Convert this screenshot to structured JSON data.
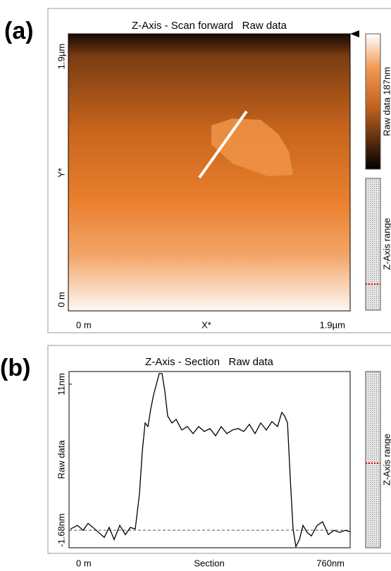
{
  "panel_a": {
    "label": "(a)",
    "title": "Z-Axis - Scan forward   Raw data",
    "y_labels": [
      "1.9µm",
      "Y*",
      "0 m"
    ],
    "x_labels": [
      "0 m",
      "X*",
      "1.9µm"
    ],
    "colorbar_label": "Raw data 187nm",
    "range_label": "Z-Axis range"
  },
  "panel_b": {
    "label": "(b)",
    "range_label": "Z-Axis range",
    "chart_data": {
      "type": "line",
      "title": "Z-Axis - Section   Raw data",
      "x_label": "Section",
      "y_label": "Raw data",
      "x": [
        3.8,
        22.9,
        38.1,
        51.4,
        64.8,
        80.0,
        95.3,
        108.6,
        121.9,
        137.2,
        152.4,
        165.7,
        179.1,
        190.5,
        198.1,
        205.7,
        213.4,
        221.0,
        228.6,
        236.2,
        243.8,
        251.5,
        259.1,
        266.7,
        278.1,
        289.6,
        304.8,
        320.0,
        335.3,
        350.5,
        365.8,
        381.0,
        396.2,
        411.5,
        426.7,
        442.0,
        457.2,
        472.4,
        487.7,
        502.9,
        518.2,
        533.4,
        548.6,
        563.9,
        575.3,
        582.9,
        590.6,
        598.2,
        605.8,
        613.4,
        622.9,
        632.5,
        643.9,
        655.3,
        670.6,
        685.8,
        701.0,
        716.3,
        731.5,
        746.7,
        760
      ],
      "series": [
        {
          "color": "#000000",
          "values": [
            -1.57,
            -1.26,
            -1.69,
            -1.08,
            -1.44,
            -1.87,
            -2.3,
            -1.44,
            -2.49,
            -1.26,
            -2.06,
            -1.44,
            -1.57,
            1.5,
            5.18,
            7.63,
            7.32,
            8.85,
            10.08,
            11.0,
            11.92,
            11.92,
            10.39,
            8.24,
            7.63,
            7.94,
            7.02,
            7.32,
            6.71,
            7.32,
            6.89,
            7.14,
            6.52,
            7.32,
            6.71,
            7.02,
            7.14,
            6.89,
            7.51,
            6.71,
            7.63,
            7.02,
            7.75,
            7.32,
            8.55,
            8.24,
            7.63,
            2.72,
            -1.57,
            -3.1,
            -2.49,
            -1.26,
            -1.87,
            -2.18,
            -1.26,
            -0.95,
            -2.06,
            -1.69,
            -1.87,
            -1.69,
            -1.81
          ]
        }
      ],
      "xlim": [
        0,
        760
      ],
      "ylim": [
        -3.2,
        12.1
      ],
      "xticks": [
        {
          "value": 0,
          "label": "0 m"
        },
        {
          "value": 760,
          "label": "760nm"
        }
      ],
      "yticks": [
        {
          "value": -1.68,
          "label": "-1.68nm"
        },
        {
          "value": 11,
          "label": "11nm"
        }
      ]
    }
  }
}
